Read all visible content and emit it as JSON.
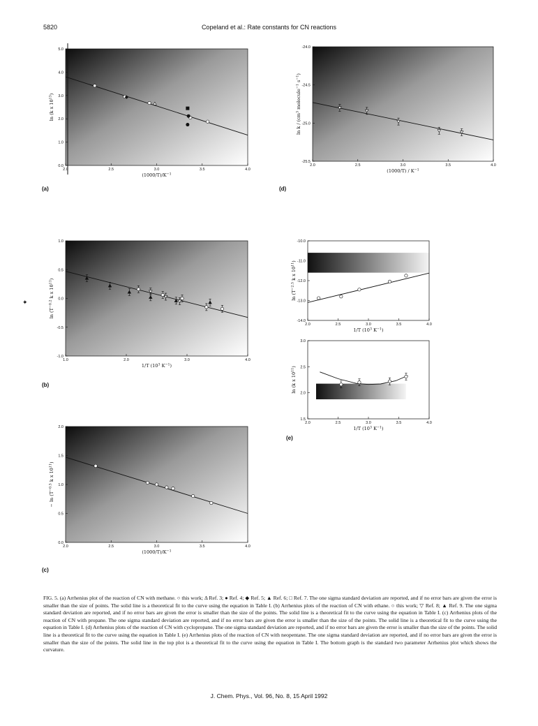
{
  "header": {
    "page_number": "5820",
    "running_title": "Copeland et al.: Rate constants for CN reactions"
  },
  "chart_data": [
    {
      "id": "a",
      "type": "scatter",
      "panel_label": "(a)",
      "xlabel": "(1000/T)/K",
      "xlabel_sup": "−1",
      "ylabel": "ln (k x 10",
      "ylabel_sup": "13",
      "ylabel_tail": ")",
      "xlim": [
        2.0,
        4.0
      ],
      "ylim": [
        0.0,
        5.0
      ],
      "xticks": [
        2.0,
        2.5,
        3.0,
        3.5,
        4.0
      ],
      "yticks": [
        0.0,
        1.0,
        2.0,
        3.0,
        4.0,
        5.0
      ],
      "grid": false,
      "fit_line": [
        [
          2.0,
          3.8
        ],
        [
          4.0,
          1.3
        ]
      ],
      "series": [
        {
          "marker": "open-circle",
          "points": [
            [
              2.32,
              3.42
            ],
            [
              2.65,
              2.95
            ],
            [
              2.92,
              2.68
            ],
            [
              3.37,
              2.05
            ],
            [
              3.56,
              1.88
            ]
          ]
        },
        {
          "marker": "open-triangle",
          "points": [
            [
              2.98,
              2.65
            ]
          ]
        },
        {
          "marker": "filled-circle",
          "points": [
            [
              3.34,
              1.75
            ],
            [
              3.35,
              2.12
            ]
          ]
        },
        {
          "marker": "filled-diamond",
          "points": [
            [
              2.67,
              2.93
            ]
          ]
        },
        {
          "marker": "filled-square",
          "points": [
            [
              3.34,
              2.45
            ]
          ]
        }
      ]
    },
    {
      "id": "b",
      "type": "scatter",
      "panel_label": "(b)",
      "xlabel": "1/T (10",
      "xlabel_sup": "3",
      "xlabel_tail": " K",
      "xlabel_sup2": "−1",
      "xlabel_end": ")",
      "ylabel": "ln (T",
      "ylabel_sup": "−0.2",
      "ylabel_tail": " k x 10",
      "ylabel_sup2": "11",
      "ylabel_end": ")",
      "xlim": [
        1.0,
        4.0
      ],
      "ylim": [
        -1.0,
        1.0
      ],
      "xticks": [
        1.0,
        2.0,
        3.0,
        4.0
      ],
      "yticks": [
        -1.0,
        -0.5,
        0.0,
        0.5,
        1.0
      ],
      "grid": false,
      "fit_line": [
        [
          1.0,
          0.47
        ],
        [
          4.0,
          -0.33
        ]
      ],
      "series": [
        {
          "marker": "open-circle",
          "points": [
            [
              2.2,
              0.16
            ],
            [
              2.6,
              0.06
            ],
            [
              2.92,
              0.0
            ],
            [
              3.32,
              -0.15
            ],
            [
              3.58,
              -0.18
            ]
          ]
        },
        {
          "marker": "open-inverted-triangle",
          "points": [
            [
              2.4,
              0.12
            ],
            [
              2.65,
              0.03
            ],
            [
              2.88,
              -0.05
            ]
          ]
        },
        {
          "marker": "filled-triangle",
          "points": [
            [
              1.35,
              0.35
            ],
            [
              1.73,
              0.22
            ],
            [
              2.05,
              0.11
            ],
            [
              2.4,
              0.02
            ],
            [
              2.82,
              -0.04
            ],
            [
              3.38,
              -0.07
            ]
          ]
        }
      ]
    },
    {
      "id": "c",
      "type": "scatter",
      "panel_label": "(c)",
      "xlabel": "(1000/T)/K",
      "xlabel_sup": "−1",
      "ylabel": "− ln (T",
      "ylabel_sup": "−0.5",
      "ylabel_tail": " k x 10",
      "ylabel_sup2": "11",
      "ylabel_end": ")",
      "xlim": [
        2.0,
        4.0
      ],
      "ylim": [
        0.0,
        2.0
      ],
      "xticks": [
        2.0,
        2.5,
        3.0,
        3.5,
        4.0
      ],
      "yticks": [
        0.0,
        0.5,
        1.0,
        1.5,
        2.0
      ],
      "grid": false,
      "fit_line": [
        [
          2.0,
          1.47
        ],
        [
          4.0,
          0.5
        ]
      ],
      "series": [
        {
          "marker": "open-circle",
          "points": [
            [
              2.33,
              1.32
            ],
            [
              2.9,
              1.03
            ],
            [
              3.0,
              1.0
            ],
            [
              3.11,
              0.95
            ],
            [
              3.18,
              0.93
            ],
            [
              3.4,
              0.8
            ],
            [
              3.6,
              0.68
            ]
          ]
        }
      ]
    },
    {
      "id": "d",
      "type": "scatter",
      "panel_label": "(d)",
      "xlabel": "(1000/T) / K",
      "xlabel_sup": "−1",
      "ylabel": "ln k / (cm",
      "ylabel_sup": "3",
      "ylabel_tail": " molecule",
      "ylabel_sup2": "−1",
      "ylabel_end": " s",
      "ylabel_sup3": "−1",
      "ylabel_close": ")",
      "xlim": [
        2.0,
        4.0
      ],
      "ylim": [
        -25.5,
        -24.0
      ],
      "xticks": [
        2.0,
        2.5,
        3.0,
        3.5,
        4.0
      ],
      "yticks": [
        -25.5,
        -25.0,
        -24.5,
        -24.0
      ],
      "grid": false,
      "fit_line": [
        [
          2.0,
          -24.73
        ],
        [
          4.0,
          -25.22
        ]
      ],
      "series": [
        {
          "marker": "open-inverted-triangle",
          "points": [
            [
              2.3,
              -24.8
            ],
            [
              2.6,
              -24.84
            ],
            [
              2.95,
              -24.98
            ],
            [
              3.4,
              -25.1
            ],
            [
              3.65,
              -25.12
            ]
          ]
        }
      ]
    },
    {
      "id": "e1",
      "type": "scatter",
      "panel_label": "(e)",
      "xlabel": "1/T (10",
      "xlabel_sup": "3",
      "xlabel_tail": " K",
      "xlabel_sup2": "−1",
      "xlabel_end": ")",
      "ylabel": "ln (T",
      "ylabel_sup": "−2.5",
      "ylabel_tail": " k x 10",
      "ylabel_sup2": "11",
      "ylabel_end": ")",
      "xlim": [
        2.0,
        4.0
      ],
      "ylim": [
        -14.0,
        -10.0
      ],
      "xticks": [
        2.0,
        2.5,
        3.0,
        3.5,
        4.0
      ],
      "yticks": [
        -14.0,
        -13.0,
        -12.0,
        -11.0,
        -10.0
      ],
      "grid": false,
      "fit_line": [
        [
          2.0,
          -13.1
        ],
        [
          4.0,
          -11.62
        ]
      ],
      "series": [
        {
          "marker": "open-circle",
          "points": [
            [
              2.18,
              -12.88
            ],
            [
              2.55,
              -12.8
            ],
            [
              2.85,
              -12.45
            ],
            [
              3.35,
              -12.05
            ],
            [
              3.62,
              -11.75
            ]
          ]
        }
      ]
    },
    {
      "id": "e2",
      "type": "scatter",
      "xlabel": "1/T (10",
      "xlabel_sup": "3",
      "xlabel_tail": " K",
      "xlabel_sup2": "−1",
      "xlabel_end": ")",
      "ylabel": "ln (k x 10",
      "ylabel_sup": "11",
      "ylabel_tail": ")",
      "xlim": [
        2.0,
        4.0
      ],
      "ylim": [
        1.5,
        3.0
      ],
      "xticks": [
        2.0,
        2.5,
        3.0,
        3.5,
        4.0
      ],
      "yticks": [
        1.5,
        2.0,
        2.5,
        3.0
      ],
      "grid": false,
      "fit_curve": [
        [
          2.2,
          2.4
        ],
        [
          2.5,
          2.27
        ],
        [
          2.8,
          2.18
        ],
        [
          3.0,
          2.16
        ],
        [
          3.2,
          2.17
        ],
        [
          3.45,
          2.23
        ],
        [
          3.65,
          2.33
        ]
      ],
      "series": [
        {
          "marker": "open-circle",
          "points": [
            [
              2.55,
              2.16
            ],
            [
              2.85,
              2.2
            ],
            [
              3.35,
              2.22
            ],
            [
              3.62,
              2.31
            ]
          ]
        }
      ]
    }
  ],
  "caption": "FIG. 5. (a) Arrhenius plot of the reaction of CN with methane. ○ this work; Δ Ref. 3; ● Ref. 4; ◆ Ref. 5; ▲ Ref. 6; □ Ref. 7. The one sigma standard deviation are reported, and if no error bars are given the error is smaller than the size of points. The solid line is a theoretical fit to the curve using the equation in Table I. (b) Arrhenius plots of the reaction of CN with ethane. ○ this work; ▽ Ref. 8; ▲ Ref. 9. The one sigma standard deviation are reported, and if no error bars are given the error is smaller than the size of the points. The solid line is a theoretical fit to the curve using the equation in Table I. (c) Arrhenius plots of the reaction of CN with propane. The one sigma standard deviation are reported, and if no error bars are given the error is smaller than the size of the points. The solid line is a theoretical fit to the curve using the equation in Table I. (d) Arrhenius plots of the reaction of CN with cyclopropane. The one sigma standard deviation are reported, and if no error bars are given the error is smaller than the size of the points. The solid line is a theoretical fit to the curve using the equation in Table I. (e) Arrhenius plots of the reaction of CN with neopentane. The one sigma standard deviation are reported, and if no error bars are given the error is smaller than the size of the points. The solid line in the top plot is a theoretical fit to the curve using the equation in Table I. The bottom graph is the standard two parameter Arrhenius plot which shows the curvature.",
  "footer": "J. Chem. Phys., Vol. 96, No. 8, 15 April 1992",
  "stray_mark": "✦"
}
